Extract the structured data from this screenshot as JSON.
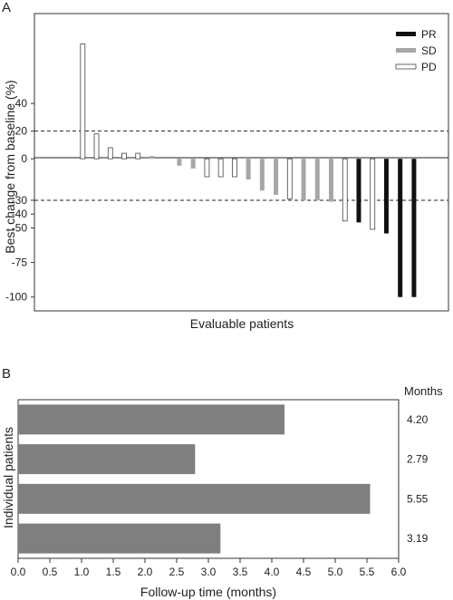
{
  "chart_data": [
    {
      "panel_label": "A",
      "type": "bar",
      "xlabel": "Evaluable patients",
      "ylabel": "Best change from baseline (%)",
      "yticks": [
        40,
        20,
        0,
        -30,
        -40,
        -50,
        -75,
        -100
      ],
      "ylim": [
        -110,
        105
      ],
      "reference_lines": [
        20,
        -30
      ],
      "legend": {
        "placement": "top-right",
        "entries": [
          {
            "key": "PR",
            "label": "PR",
            "color": "#111111",
            "fill": "#111111"
          },
          {
            "key": "SD",
            "label": "SD",
            "color": "#a6a6a6",
            "fill": "#a6a6a6"
          },
          {
            "key": "PD",
            "label": "PD",
            "color": "#444444",
            "fill": "#ffffff"
          }
        ]
      },
      "bars": [
        {
          "value": 83,
          "response": "PD"
        },
        {
          "value": 18,
          "response": "PD"
        },
        {
          "value": 8,
          "response": "PD"
        },
        {
          "value": 4,
          "response": "PD"
        },
        {
          "value": 4,
          "response": "PD"
        },
        {
          "value": 2,
          "response": "SD"
        },
        {
          "value": -5,
          "response": "SD"
        },
        {
          "value": -7,
          "response": "SD"
        },
        {
          "value": -13,
          "response": "PD"
        },
        {
          "value": -13,
          "response": "PD"
        },
        {
          "value": -13,
          "response": "PD"
        },
        {
          "value": -15,
          "response": "SD"
        },
        {
          "value": -23,
          "response": "SD"
        },
        {
          "value": -26,
          "response": "SD"
        },
        {
          "value": -29,
          "response": "PD"
        },
        {
          "value": -30,
          "response": "SD"
        },
        {
          "value": -30,
          "response": "SD"
        },
        {
          "value": -31,
          "response": "SD"
        },
        {
          "value": -45,
          "response": "PD"
        },
        {
          "value": -46,
          "response": "PR"
        },
        {
          "value": -51,
          "response": "PD"
        },
        {
          "value": -54,
          "response": "PR"
        },
        {
          "value": -100,
          "response": "PR"
        },
        {
          "value": -100,
          "response": "PR"
        }
      ],
      "bar_x_positions": [
        3,
        4,
        5,
        6,
        7,
        8,
        10,
        11,
        12,
        13,
        14,
        15,
        16,
        17,
        18,
        19,
        20,
        21,
        22,
        23,
        24,
        25,
        26,
        27
      ],
      "x_slots": 30
    },
    {
      "panel_label": "B",
      "type": "bar",
      "orientation": "horizontal",
      "xlabel": "Follow-up time (months)",
      "ylabel": "Individual patients",
      "value_header": "Months",
      "xlim": [
        0,
        6.0
      ],
      "xticks": [
        "0.0",
        "0.5",
        "1.0",
        "1.5",
        "2.0",
        "2.5",
        "3.0",
        "3.5",
        "4.0",
        "4.5",
        "5.0",
        "5.5",
        "6.0"
      ],
      "values": [
        4.2,
        2.79,
        5.55,
        3.19
      ],
      "value_labels": [
        "4.20",
        "2.79",
        "5.55",
        "3.19"
      ],
      "bar_color": "#7f7f7f"
    }
  ]
}
